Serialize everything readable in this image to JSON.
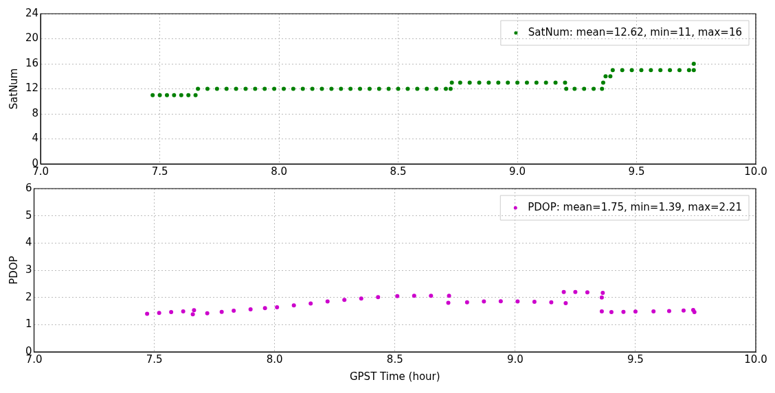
{
  "chart_data": [
    {
      "type": "scatter",
      "ylabel": "SatNum",
      "xlim": [
        7,
        10
      ],
      "ylim": [
        0,
        24
      ],
      "xticks": [
        {
          "value": 7,
          "label": "7.0"
        },
        {
          "value": 7.5,
          "label": "7.5"
        },
        {
          "value": 8,
          "label": "8.0"
        },
        {
          "value": 8.5,
          "label": "8.5"
        },
        {
          "value": 9,
          "label": "9.0"
        },
        {
          "value": 9.5,
          "label": "9.5"
        },
        {
          "value": 10,
          "label": "10.0"
        }
      ],
      "yticks": [
        0,
        4,
        8,
        12,
        16,
        20,
        24
      ],
      "grid": true,
      "legend": "top right",
      "marker": "circle",
      "series": [
        {
          "name": "SatNum: mean=12.62, min=11, max=16",
          "color": "#008000",
          "x": [
            7.47,
            7.5,
            7.53,
            7.56,
            7.59,
            7.62,
            7.65,
            7.66,
            7.7,
            7.74,
            7.78,
            7.82,
            7.86,
            7.9,
            7.94,
            7.98,
            8.02,
            8.06,
            8.1,
            8.14,
            8.18,
            8.22,
            8.26,
            8.3,
            8.34,
            8.38,
            8.42,
            8.46,
            8.5,
            8.54,
            8.58,
            8.62,
            8.66,
            8.7,
            8.72,
            8.725,
            8.76,
            8.8,
            8.84,
            8.88,
            8.92,
            8.96,
            9,
            9.04,
            9.08,
            9.12,
            9.16,
            9.2,
            9.205,
            9.24,
            9.28,
            9.32,
            9.355,
            9.36,
            9.37,
            9.39,
            9.4,
            9.44,
            9.48,
            9.52,
            9.56,
            9.6,
            9.64,
            9.68,
            9.72,
            9.74,
            9.74
          ],
          "values": [
            11,
            11,
            11,
            11,
            11,
            11,
            11,
            12,
            12,
            12,
            12,
            12,
            12,
            12,
            12,
            12,
            12,
            12,
            12,
            12,
            12,
            12,
            12,
            12,
            12,
            12,
            12,
            12,
            12,
            12,
            12,
            12,
            12,
            12,
            12,
            13,
            13,
            13,
            13,
            13,
            13,
            13,
            13,
            13,
            13,
            13,
            13,
            13,
            12,
            12,
            12,
            12,
            12,
            13,
            14,
            14,
            15,
            15,
            15,
            15,
            15,
            15,
            15,
            15,
            15,
            15,
            16
          ]
        }
      ]
    },
    {
      "type": "scatter",
      "xlabel": "GPST Time (hour)",
      "ylabel": "PDOP",
      "xlim": [
        7,
        10
      ],
      "ylim": [
        0,
        6
      ],
      "xticks": [
        {
          "value": 7,
          "label": "7.0"
        },
        {
          "value": 7.5,
          "label": "7.5"
        },
        {
          "value": 8,
          "label": "8.0"
        },
        {
          "value": 8.5,
          "label": "8.5"
        },
        {
          "value": 9,
          "label": "9.0"
        },
        {
          "value": 9.5,
          "label": "9.5"
        },
        {
          "value": 10,
          "label": "10.0"
        }
      ],
      "yticks": [
        0,
        1,
        2,
        3,
        4,
        5,
        6
      ],
      "grid": true,
      "legend": "top right",
      "marker": "circle",
      "series": [
        {
          "name": "PDOP: mean=1.75, min=1.39, max=2.21",
          "color": "#cc00cc",
          "x": [
            7.47,
            7.52,
            7.57,
            7.62,
            7.665,
            7.66,
            7.72,
            7.78,
            7.83,
            7.9,
            7.96,
            8.01,
            8.08,
            8.15,
            8.22,
            8.29,
            8.36,
            8.43,
            8.51,
            8.58,
            8.65,
            8.725,
            8.722,
            8.8,
            8.87,
            8.94,
            9.01,
            9.08,
            9.15,
            9.21,
            9.202,
            9.25,
            9.3,
            9.364,
            9.36,
            9.36,
            9.4,
            9.45,
            9.5,
            9.575,
            9.64,
            9.7,
            9.74,
            9.745
          ],
          "values": [
            1.4,
            1.43,
            1.46,
            1.49,
            1.53,
            1.38,
            1.42,
            1.47,
            1.51,
            1.56,
            1.61,
            1.64,
            1.71,
            1.78,
            1.85,
            1.91,
            1.96,
            2.01,
            2.05,
            2.06,
            2.06,
            2.06,
            1.8,
            1.82,
            1.85,
            1.86,
            1.85,
            1.84,
            1.82,
            1.79,
            2.2,
            2.2,
            2.19,
            2.17,
            2,
            1.49,
            1.46,
            1.47,
            1.48,
            1.49,
            1.5,
            1.52,
            1.54,
            1.46
          ]
        }
      ]
    }
  ]
}
